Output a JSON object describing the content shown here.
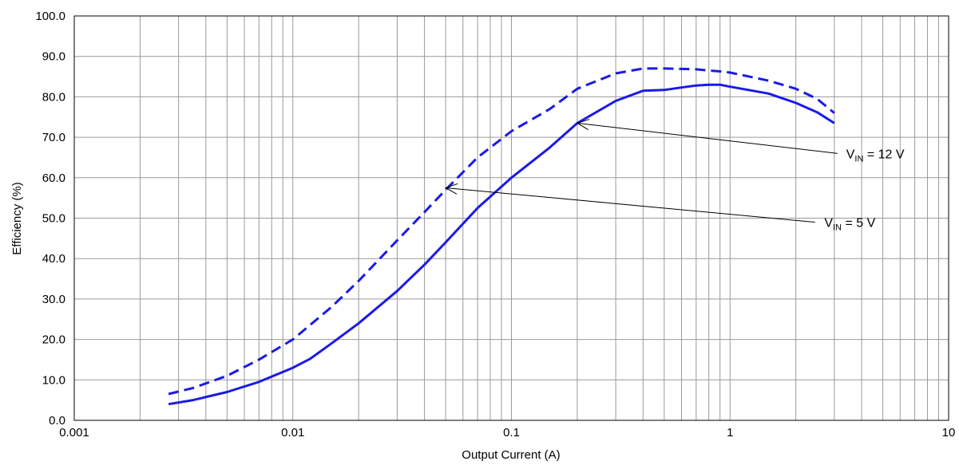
{
  "chart_data": {
    "type": "line",
    "title": "",
    "xlabel": "Output Current (A)",
    "ylabel": "Efficiency (%)",
    "x_scale": "log",
    "xlim": [
      0.001,
      10
    ],
    "ylim": [
      0,
      100
    ],
    "grid": true,
    "x_ticks": [
      "0.001",
      "0.01",
      "0.1",
      "1",
      "10"
    ],
    "y_ticks": [
      "0.0",
      "10.0",
      "20.0",
      "30.0",
      "40.0",
      "50.0",
      "60.0",
      "70.0",
      "80.0",
      "90.0",
      "100.0"
    ],
    "line_color": "#1a1ae6",
    "series": [
      {
        "style": "solid",
        "x": [
          0.0027,
          0.0035,
          0.005,
          0.007,
          0.01,
          0.012,
          0.015,
          0.02,
          0.03,
          0.04,
          0.05,
          0.07,
          0.1,
          0.15,
          0.2,
          0.3,
          0.4,
          0.5,
          0.6,
          0.7,
          0.8,
          0.9,
          1.0,
          1.5,
          2.0,
          2.5,
          3.0
        ],
        "y": [
          4.0,
          5.0,
          7.0,
          9.5,
          13.0,
          15.2,
          19.0,
          24.0,
          32.0,
          38.5,
          44.0,
          52.5,
          60.0,
          67.5,
          73.5,
          79.0,
          81.5,
          81.7,
          82.3,
          82.8,
          83.0,
          83.0,
          82.5,
          80.8,
          78.5,
          76.2,
          73.5
        ]
      },
      {
        "style": "dashed",
        "x": [
          0.0027,
          0.0035,
          0.005,
          0.007,
          0.01,
          0.015,
          0.02,
          0.03,
          0.04,
          0.05,
          0.07,
          0.1,
          0.15,
          0.2,
          0.3,
          0.4,
          0.5,
          0.6,
          0.7,
          0.8,
          0.9,
          1.0,
          1.5,
          2.0,
          2.5,
          3.0
        ],
        "y": [
          6.5,
          8.0,
          11.0,
          15.0,
          20.0,
          28.0,
          34.5,
          44.5,
          51.5,
          57.0,
          65.0,
          71.5,
          77.0,
          82.0,
          85.8,
          87.0,
          87.0,
          86.9,
          86.8,
          86.5,
          86.3,
          86.0,
          84.0,
          82.0,
          79.5,
          76.0
        ]
      }
    ],
    "annotations": [
      {
        "main": "V",
        "sub": "IN",
        "rest": " = 12 V",
        "text_at": [
          3.4,
          66
        ],
        "arrow_from": [
          3.1,
          66
        ],
        "arrow_to": [
          0.2,
          73.5
        ]
      },
      {
        "main": "V",
        "sub": "IN",
        "rest": " = 5 V",
        "text_at": [
          2.7,
          49
        ],
        "arrow_from": [
          2.45,
          49
        ],
        "arrow_to": [
          0.05,
          57.5
        ]
      }
    ]
  }
}
